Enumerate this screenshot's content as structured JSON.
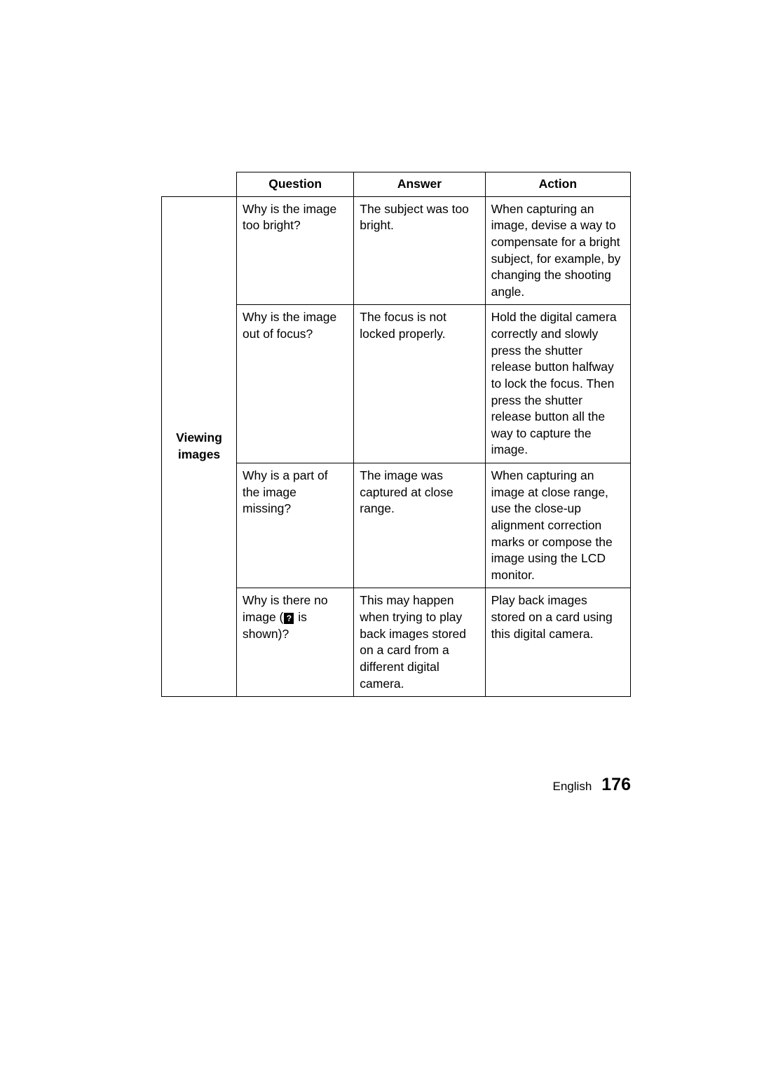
{
  "table": {
    "headers": {
      "question": "Question",
      "answer": "Answer",
      "action": "Action"
    },
    "category_label_line1": "Viewing",
    "category_label_line2": "images",
    "rows": [
      {
        "question": "Why is the image too bright?",
        "answer": "The subject was too bright.",
        "action": "When capturing an image, devise a way to compensate for a bright subject, for example, by changing the shooting angle."
      },
      {
        "question": "Why is the image out of focus?",
        "answer": "The focus is not locked properly.",
        "action": "Hold the digital camera correctly and slowly press the shutter release button halfway to lock the focus. Then press the shutter release button all the way to capture the image."
      },
      {
        "question": "Why is a part of the image missing?",
        "answer": "The image was captured at close range.",
        "action": "When capturing an image at close range, use the close-up alignment correction marks or compose the image using the LCD monitor."
      },
      {
        "question_pre": "Why is there no image (",
        "question_icon": "?",
        "question_post": " is shown)?",
        "answer": "This may happen when trying to play back images stored on a card from a different digital camera.",
        "action": "Play back images stored on a card using this digital camera."
      }
    ]
  },
  "footer": {
    "language": "English",
    "page_number": "176"
  },
  "colors": {
    "background": "#ffffff",
    "border": "#000000",
    "text": "#000000"
  },
  "typography": {
    "body_fontsize": 17.5,
    "header_fontweight": "bold",
    "footer_lang_fontsize": 17,
    "footer_page_fontsize": 25
  }
}
